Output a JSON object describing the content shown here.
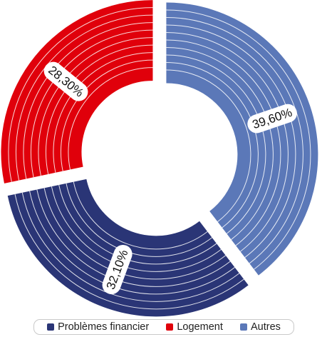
{
  "chart_data": {
    "type": "pie",
    "style": "donut",
    "slices": [
      {
        "name": "Problèmes financier",
        "value": 32.1,
        "label": "32,10%",
        "color": "#2a3576"
      },
      {
        "name": "Logement",
        "value": 28.3,
        "label": "28,30%",
        "color": "#e0000b"
      },
      {
        "name": "Autres",
        "value": 39.6,
        "label": "39,60%",
        "color": "#5b78b8"
      }
    ],
    "legend": {
      "position": "bottom",
      "items": [
        {
          "label": "Problèmes financier",
          "color": "#2a3576"
        },
        {
          "label": "Logement",
          "color": "#e0000b"
        },
        {
          "label": "Autres",
          "color": "#5b78b8"
        }
      ]
    }
  }
}
